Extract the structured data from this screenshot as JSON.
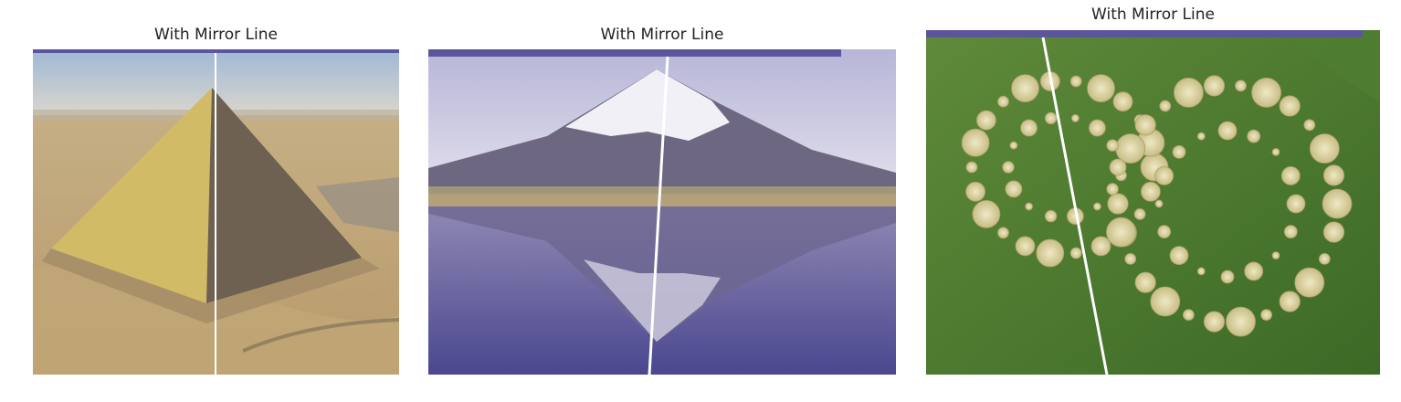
{
  "figure": {
    "panels": [
      {
        "title": "With Mirror Line",
        "scene": "pyramid"
      },
      {
        "title": "With Mirror Line",
        "scene": "mountain-reflection-lake"
      },
      {
        "title": "With Mirror Line",
        "scene": "crop-circle-field"
      }
    ]
  },
  "colors": {
    "mirror_line": "#ffffff",
    "top_bar": "#5b559e"
  }
}
